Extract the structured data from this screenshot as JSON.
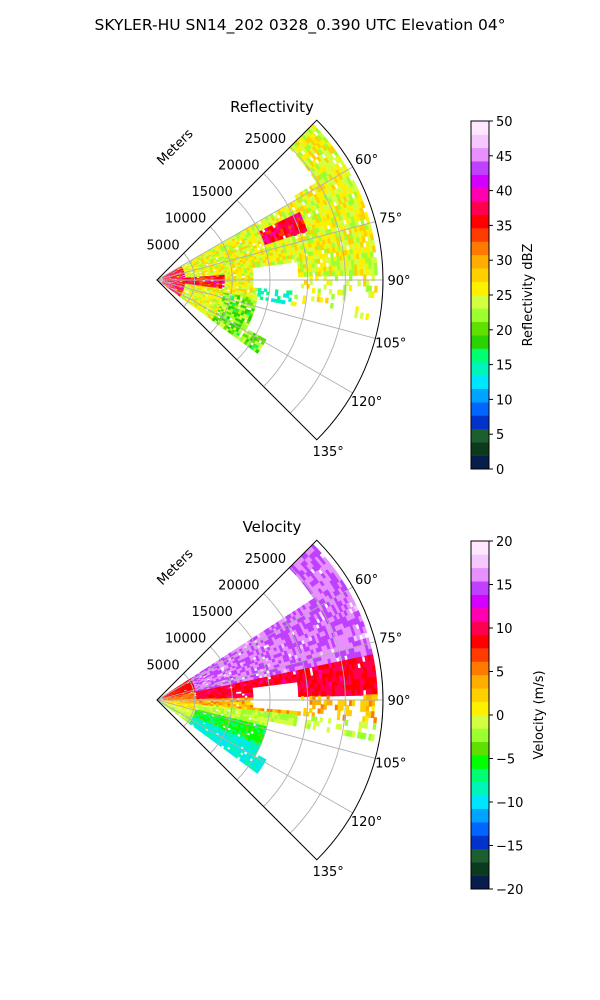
{
  "figure": {
    "title": "SKYLER-HU  SN14_202  0328_0.390 UTC Elevation 04°"
  },
  "colors": {
    "wedge_outline": "#000000",
    "grid": "#b0b0b0",
    "reflectivity_scale": [
      "#071e4d",
      "#0b3a1c",
      "#1c5e2e",
      "#0033cc",
      "#0066ff",
      "#00a3ff",
      "#00e5ff",
      "#00f5b8",
      "#00ff73",
      "#2bd400",
      "#5fe000",
      "#9cff30",
      "#d4ff40",
      "#fff000",
      "#ffd000",
      "#ffae00",
      "#ff7a00",
      "#ff3c00",
      "#ff0000",
      "#ff0050",
      "#ff00b0",
      "#d400ff",
      "#c040ff",
      "#e890ff",
      "#f5c8ff",
      "#ffe8ff"
    ],
    "velocity_scale": [
      "#071e4d",
      "#0b3a1c",
      "#1c5e2e",
      "#0033cc",
      "#0066ff",
      "#00a3ff",
      "#00e5ff",
      "#00f5b8",
      "#00ff73",
      "#00ff00",
      "#5fe000",
      "#9cff30",
      "#d4ff40",
      "#fff000",
      "#ffd000",
      "#ffae00",
      "#ff7a00",
      "#ff3c00",
      "#ff0000",
      "#ff0050",
      "#ff00b0",
      "#d400ff",
      "#c040ff",
      "#e890ff",
      "#f5c8ff",
      "#ffe8ff"
    ]
  },
  "chart_data": [
    {
      "type": "heatmap",
      "projection": "polar-sector",
      "title": "Reflectivity",
      "range_label": "Meters",
      "range_ticks": [
        5000,
        10000,
        15000,
        20000,
        25000
      ],
      "range_max": 30000,
      "azimuth_ticks": [
        "60°",
        "75°",
        "90°",
        "105°",
        "120°",
        "135°"
      ],
      "azimuth_tick_values": [
        60,
        75,
        90,
        105,
        120,
        135
      ],
      "azimuth_range": [
        45,
        135
      ],
      "grid": true,
      "colorbar": {
        "label": "Reflectivity dBZ",
        "range": [
          0,
          50
        ],
        "ticks": [
          "0",
          "5",
          "10",
          "15",
          "20",
          "25",
          "30",
          "35",
          "40",
          "45",
          "50"
        ],
        "tick_values": [
          0,
          5,
          10,
          15,
          20,
          25,
          30,
          35,
          40,
          45,
          50
        ]
      },
      "field": "reflectivity"
    },
    {
      "type": "heatmap",
      "projection": "polar-sector",
      "title": "Velocity",
      "range_label": "Meters",
      "range_ticks": [
        5000,
        10000,
        15000,
        20000,
        25000
      ],
      "range_max": 30000,
      "azimuth_ticks": [
        "60°",
        "75°",
        "90°",
        "105°",
        "120°",
        "135°"
      ],
      "azimuth_tick_values": [
        60,
        75,
        90,
        105,
        120,
        135
      ],
      "azimuth_range": [
        45,
        135
      ],
      "grid": true,
      "colorbar": {
        "label": "Velocity (m/s)",
        "range": [
          -20,
          20
        ],
        "ticks": [
          "−20",
          "−15",
          "−10",
          "−5",
          "0",
          "5",
          "10",
          "15",
          "20"
        ],
        "tick_values": [
          -20,
          -15,
          -10,
          -5,
          0,
          5,
          10,
          15,
          20
        ]
      },
      "field": "velocity"
    }
  ]
}
